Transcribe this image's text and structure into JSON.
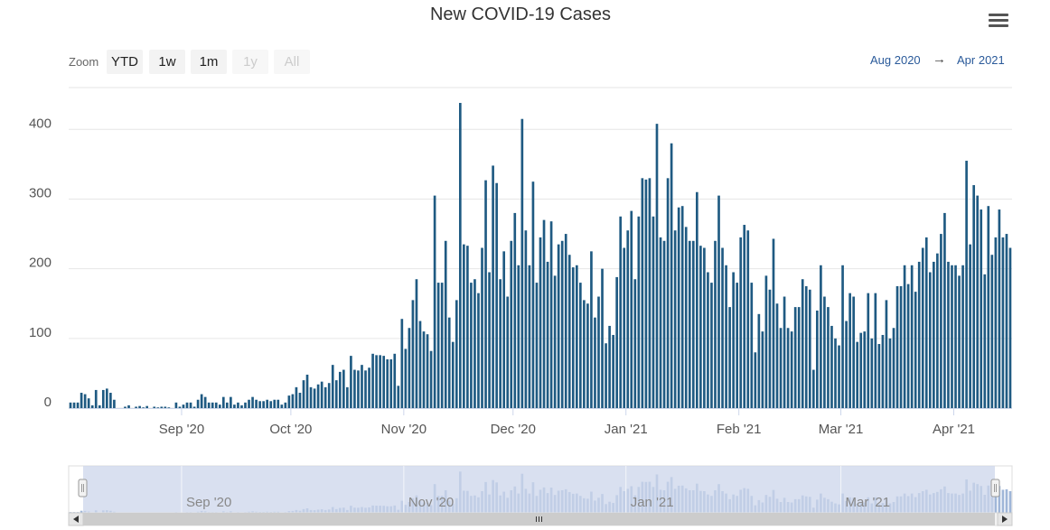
{
  "chart_data": {
    "type": "bar",
    "title": "New COVID-19 Cases",
    "xlabel": "",
    "ylabel": "",
    "ylim": [
      0,
      460
    ],
    "x_range": [
      "2020-08-01",
      "2021-04-19"
    ],
    "y_ticks": [
      0,
      100,
      200,
      300,
      400
    ],
    "x_tick_labels": [
      {
        "date": "2020-09-01",
        "label": "Sep '20"
      },
      {
        "date": "2020-10-01",
        "label": "Oct '20"
      },
      {
        "date": "2020-11-01",
        "label": "Nov '20"
      },
      {
        "date": "2020-12-01",
        "label": "Dec '20"
      },
      {
        "date": "2021-01-01",
        "label": "Jan '21"
      },
      {
        "date": "2021-02-01",
        "label": "Feb '21"
      },
      {
        "date": "2021-03-01",
        "label": "Mar '21"
      },
      {
        "date": "2021-04-01",
        "label": "Apr '21"
      }
    ],
    "series": [
      {
        "name": "New Cases",
        "color": "#1f5a82",
        "start_date": "2020-08-01",
        "values": [
          8,
          8,
          8,
          22,
          20,
          14,
          4,
          26,
          4,
          26,
          28,
          22,
          12,
          0,
          0,
          2,
          4,
          0,
          2,
          3,
          1,
          3,
          0,
          2,
          1,
          2,
          2,
          1,
          0,
          8,
          2,
          5,
          8,
          8,
          2,
          12,
          20,
          16,
          8,
          8,
          8,
          5,
          16,
          8,
          16,
          5,
          8,
          4,
          8,
          12,
          16,
          12,
          10,
          10,
          12,
          10,
          12,
          12,
          5,
          8,
          18,
          20,
          30,
          22,
          40,
          48,
          30,
          28,
          34,
          38,
          30,
          36,
          62,
          40,
          52,
          55,
          30,
          75,
          55,
          54,
          62,
          54,
          58,
          78,
          76,
          76,
          75,
          70,
          70,
          78,
          32,
          128,
          85,
          115,
          155,
          185,
          125,
          110,
          106,
          82,
          305,
          180,
          180,
          240,
          130,
          95,
          155,
          438,
          235,
          233,
          180,
          185,
          165,
          230,
          327,
          195,
          348,
          323,
          185,
          225,
          160,
          240,
          280,
          205,
          415,
          255,
          205,
          325,
          180,
          245,
          270,
          210,
          268,
          190,
          235,
          240,
          250,
          220,
          202,
          205,
          180,
          155,
          150,
          225,
          130,
          160,
          200,
          93,
          118,
          105,
          188,
          275,
          230,
          255,
          283,
          185,
          275,
          330,
          328,
          330,
          275,
          408,
          245,
          240,
          330,
          380,
          255,
          288,
          290,
          260,
          240,
          240,
          310,
          233,
          230,
          195,
          180,
          240,
          305,
          230,
          205,
          145,
          195,
          180,
          245,
          263,
          255,
          180,
          80,
          135,
          110,
          190,
          170,
          243,
          150,
          115,
          160,
          115,
          110,
          145,
          145,
          185,
          175,
          170,
          55,
          140,
          205,
          160,
          145,
          118,
          100,
          90,
          205,
          125,
          165,
          160,
          95,
          108,
          110,
          165,
          100,
          165,
          92,
          105,
          155,
          100,
          115,
          175,
          175,
          205,
          178,
          205,
          167,
          210,
          230,
          245,
          195,
          210,
          222,
          250,
          280,
          210,
          205,
          205,
          190,
          205,
          355,
          235,
          320,
          305,
          285,
          192,
          290,
          220,
          245,
          285,
          245,
          250,
          230
        ]
      }
    ],
    "navigator": {
      "tick_labels": [
        "Sep '20",
        "Nov '20",
        "Jan '21",
        "Mar '21"
      ]
    }
  },
  "ui": {
    "zoom_label": "Zoom",
    "zoom_buttons": [
      {
        "label": "YTD",
        "state": "active"
      },
      {
        "label": "1w",
        "state": "normal"
      },
      {
        "label": "1m",
        "state": "normal"
      },
      {
        "label": "1y",
        "state": "disabled"
      },
      {
        "label": "All",
        "state": "disabled"
      }
    ],
    "range_from": "Aug 2020",
    "range_arrow": "→",
    "range_to": "Apr 2021",
    "menu_icon": "hamburger-menu-icon",
    "colors": {
      "bar": "#1f5a82",
      "navigator_mask": "#ccd6eb",
      "navigator_series": "#9fb6d8",
      "grid": "#e6e6e6"
    }
  }
}
